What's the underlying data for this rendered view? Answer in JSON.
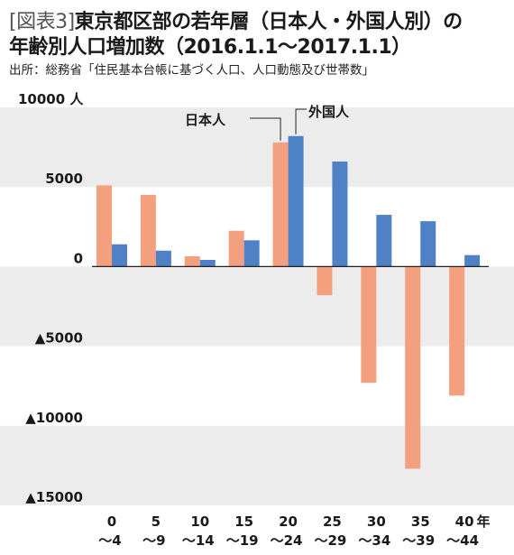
{
  "header": {
    "fig_tag": "[図表3]",
    "title_line1": "東京都区部の若年層（日本人・外国人別）の",
    "title_line2": "年齢別人口増加数（2016.1.1～2017.1.1）",
    "source": "出所：総務省「住民基本台帳に基づく人口、人口動態及び世帯数」"
  },
  "chart_data": {
    "type": "bar",
    "y_unit_label": "人",
    "x_unit_label": "年",
    "ylim": [
      -15000,
      10000
    ],
    "y_ticks": [
      {
        "value": 10000,
        "label": "10000"
      },
      {
        "value": 5000,
        "label": "5000"
      },
      {
        "value": 0,
        "label": "0"
      },
      {
        "value": -5000,
        "label": "▲5000"
      },
      {
        "value": -10000,
        "label": "▲10000"
      },
      {
        "value": -15000,
        "label": "▲15000"
      }
    ],
    "categories": [
      {
        "top": "0",
        "bottom": "～4"
      },
      {
        "top": "5",
        "bottom": "～9"
      },
      {
        "top": "10",
        "bottom": "～14"
      },
      {
        "top": "15",
        "bottom": "～19"
      },
      {
        "top": "20",
        "bottom": "～24"
      },
      {
        "top": "25",
        "bottom": "～29"
      },
      {
        "top": "30",
        "bottom": "～34"
      },
      {
        "top": "35",
        "bottom": "～39"
      },
      {
        "top": "40",
        "bottom": "～44"
      }
    ],
    "series": [
      {
        "name": "日本人",
        "color": "#f4a07e",
        "values": [
          5100,
          4500,
          650,
          2250,
          7800,
          -1800,
          -7300,
          -12700,
          -8100
        ]
      },
      {
        "name": "外国人",
        "color": "#4f81c7",
        "values": [
          1400,
          1000,
          420,
          1650,
          8200,
          6600,
          3250,
          2850,
          720
        ]
      }
    ],
    "grid": "alternating horizontal bands",
    "band_color": "#ececec"
  }
}
